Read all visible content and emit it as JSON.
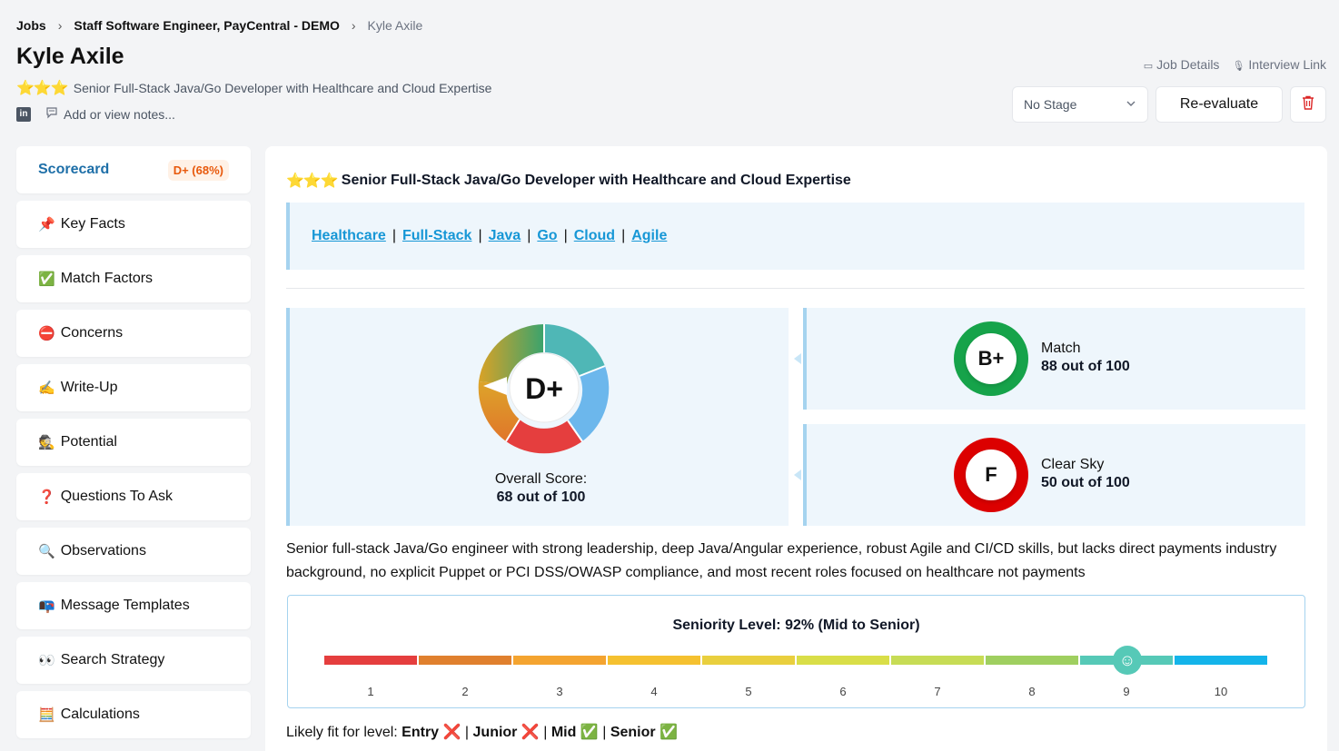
{
  "breadcrumb": {
    "jobs": "Jobs",
    "job": "Staff Software Engineer, PayCentral - DEMO",
    "candidate": "Kyle Axile",
    "separator": "›"
  },
  "candidate": {
    "name": "Kyle Axile",
    "stars": "⭐⭐⭐",
    "headline": "Senior Full-Stack Java/Go Developer with Healthcare and Cloud Expertise",
    "notes_placeholder": "Add or view notes...",
    "linkedin_icon_text": "in"
  },
  "header": {
    "job_details": "Job Details",
    "interview_link": "Interview Link",
    "stage": "No Stage",
    "reevaluate": "Re-evaluate"
  },
  "sidebar": {
    "scorecard": {
      "label": "Scorecard",
      "badge": "D+ (68%)"
    },
    "items": [
      {
        "emoji": "📌",
        "label": "Key Facts"
      },
      {
        "emoji": "✅",
        "label": "Match Factors"
      },
      {
        "emoji": "⛔",
        "label": "Concerns"
      },
      {
        "emoji": "✍️",
        "label": "Write-Up"
      },
      {
        "emoji": "🕵️",
        "label": "Potential"
      },
      {
        "emoji": "❓",
        "label": "Questions To Ask"
      },
      {
        "emoji": "🔍",
        "label": "Observations"
      },
      {
        "emoji": "📭",
        "label": "Message Templates"
      },
      {
        "emoji": "👀",
        "label": "Search Strategy"
      },
      {
        "emoji": "🧮",
        "label": "Calculations"
      }
    ]
  },
  "main": {
    "stars": "⭐⭐⭐",
    "title": "Senior Full-Stack Java/Go Developer with Healthcare and Cloud Expertise",
    "tags": [
      "Healthcare",
      "Full-Stack",
      "Java",
      "Go",
      "Cloud",
      "Agile"
    ],
    "tag_separator": "|",
    "overall": {
      "grade": "D+",
      "label": "Overall Score:",
      "value": "68 out of 100"
    },
    "match": {
      "grade": "B+",
      "name": "Match",
      "value": "88 out of 100"
    },
    "clearsky": {
      "grade": "F",
      "name": "Clear Sky",
      "value": "50 out of 100"
    },
    "summary": "Senior full-stack Java/Go engineer with strong leadership, deep Java/Angular experience, robust Agile and CI/CD skills, but lacks direct payments industry background, no explicit Puppet or PCI DSS/OWASP compliance, and most recent roles focused on healthcare not payments",
    "seniority": {
      "title": "Seniority Level: 92% (Mid to Senior)",
      "level": 9,
      "labels": [
        "1",
        "2",
        "3",
        "4",
        "5",
        "6",
        "7",
        "8",
        "9",
        "10"
      ],
      "colors": [
        "#e53e3e",
        "#e0802e",
        "#f4a430",
        "#f5c130",
        "#e9cf3e",
        "#d9de48",
        "#c7dc55",
        "#9fcf60",
        "#56c9b7",
        "#14b4ea"
      ],
      "marker_icon": "☺"
    },
    "fit": {
      "prefix": "Likely fit for level:",
      "entry": "Entry",
      "entry_mark": "❌",
      "junior": "Junior",
      "junior_mark": "❌",
      "mid": "Mid",
      "mid_mark": "✅",
      "senior": "Senior",
      "senior_mark": "✅",
      "sep": "|"
    }
  },
  "colors": {
    "accent": "#1e6fa8",
    "tag": "#1797d6",
    "card_bg": "#eef6fc",
    "green": "#16a34a",
    "red": "#dc0000"
  }
}
